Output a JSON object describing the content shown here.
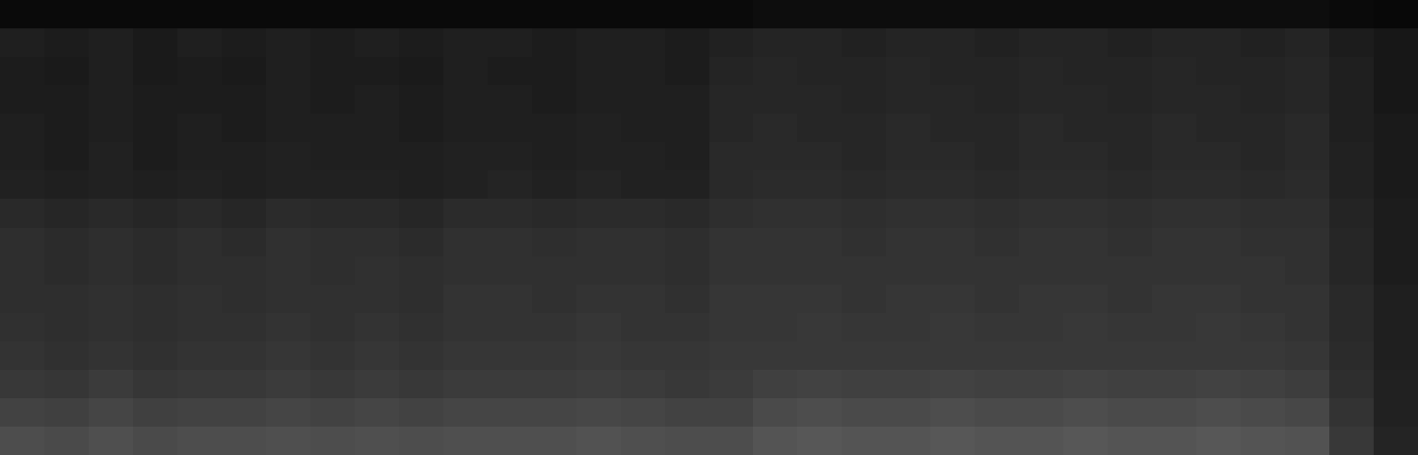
{
  "chart_data": {
    "type": "heatmap",
    "tick_labels": false,
    "zlim": [
      0,
      100
    ],
    "cells": [
      [
        4,
        4,
        4,
        4,
        4,
        4,
        4,
        4,
        4,
        4,
        4,
        4,
        4,
        4,
        4,
        4,
        4,
        5,
        5,
        5,
        5,
        5,
        5,
        5,
        5,
        5,
        5,
        5,
        5,
        5,
        4,
        3
      ],
      [
        12,
        11,
        12,
        10,
        12,
        11,
        12,
        11,
        12,
        11,
        12,
        12,
        11,
        12,
        12,
        11,
        13,
        14,
        14,
        13,
        14,
        14,
        13,
        14,
        14,
        13,
        14,
        14,
        13,
        14,
        11,
        9
      ],
      [
        11,
        10,
        12,
        10,
        11,
        10,
        12,
        11,
        11,
        10,
        12,
        11,
        11,
        12,
        12,
        11,
        14,
        15,
        14,
        14,
        15,
        14,
        14,
        15,
        14,
        14,
        15,
        14,
        14,
        15,
        12,
        9
      ],
      [
        11,
        11,
        12,
        11,
        11,
        11,
        12,
        11,
        12,
        11,
        12,
        12,
        11,
        12,
        12,
        12,
        15,
        15,
        15,
        14,
        15,
        15,
        14,
        15,
        15,
        14,
        15,
        15,
        14,
        15,
        12,
        9
      ],
      [
        12,
        11,
        12,
        11,
        12,
        11,
        12,
        12,
        12,
        11,
        12,
        12,
        12,
        13,
        12,
        12,
        15,
        16,
        15,
        15,
        16,
        15,
        15,
        16,
        15,
        15,
        16,
        15,
        15,
        16,
        12,
        10
      ],
      [
        12,
        11,
        13,
        11,
        12,
        12,
        13,
        12,
        12,
        12,
        13,
        13,
        12,
        13,
        13,
        12,
        16,
        16,
        16,
        15,
        16,
        16,
        15,
        16,
        16,
        15,
        16,
        16,
        15,
        16,
        13,
        10
      ],
      [
        13,
        12,
        13,
        12,
        13,
        12,
        13,
        13,
        13,
        12,
        13,
        14,
        13,
        14,
        13,
        13,
        16,
        17,
        17,
        16,
        17,
        17,
        16,
        17,
        17,
        16,
        17,
        17,
        16,
        17,
        13,
        10
      ],
      [
        16,
        15,
        16,
        15,
        16,
        15,
        17,
        16,
        16,
        15,
        17,
        17,
        16,
        17,
        17,
        16,
        18,
        19,
        19,
        18,
        19,
        19,
        18,
        19,
        19,
        18,
        19,
        19,
        18,
        18,
        14,
        11
      ],
      [
        18,
        17,
        18,
        17,
        18,
        17,
        19,
        18,
        18,
        17,
        19,
        19,
        18,
        19,
        19,
        18,
        20,
        20,
        20,
        19,
        20,
        20,
        19,
        20,
        20,
        19,
        20,
        20,
        19,
        19,
        15,
        11
      ],
      [
        18,
        17,
        18,
        17,
        18,
        18,
        19,
        18,
        19,
        18,
        19,
        19,
        19,
        19,
        19,
        18,
        20,
        20,
        20,
        20,
        20,
        20,
        20,
        20,
        20,
        20,
        20,
        20,
        20,
        19,
        15,
        11
      ],
      [
        18,
        18,
        19,
        18,
        19,
        18,
        19,
        19,
        19,
        18,
        20,
        20,
        19,
        20,
        20,
        19,
        21,
        21,
        21,
        20,
        21,
        21,
        20,
        21,
        21,
        20,
        21,
        21,
        20,
        20,
        16,
        12
      ],
      [
        19,
        18,
        19,
        18,
        19,
        19,
        20,
        19,
        20,
        19,
        20,
        20,
        20,
        21,
        20,
        20,
        21,
        21,
        22,
        21,
        21,
        22,
        21,
        21,
        22,
        21,
        21,
        22,
        21,
        20,
        16,
        12
      ],
      [
        20,
        19,
        20,
        19,
        20,
        20,
        21,
        20,
        21,
        20,
        21,
        21,
        21,
        22,
        21,
        21,
        22,
        22,
        22,
        22,
        22,
        22,
        22,
        22,
        22,
        22,
        22,
        22,
        22,
        21,
        17,
        12
      ],
      [
        22,
        21,
        23,
        21,
        22,
        22,
        23,
        22,
        23,
        22,
        23,
        23,
        23,
        24,
        23,
        22,
        23,
        25,
        26,
        25,
        25,
        26,
        25,
        25,
        26,
        25,
        25,
        26,
        25,
        24,
        18,
        13
      ],
      [
        26,
        25,
        27,
        25,
        26,
        26,
        27,
        26,
        27,
        26,
        27,
        27,
        27,
        28,
        27,
        26,
        26,
        29,
        30,
        29,
        29,
        30,
        29,
        29,
        30,
        29,
        29,
        30,
        29,
        28,
        20,
        13
      ],
      [
        30,
        29,
        31,
        29,
        30,
        30,
        31,
        30,
        31,
        30,
        31,
        31,
        31,
        32,
        31,
        30,
        30,
        33,
        34,
        33,
        33,
        34,
        33,
        33,
        34,
        33,
        33,
        34,
        33,
        32,
        22,
        14
      ]
    ]
  }
}
